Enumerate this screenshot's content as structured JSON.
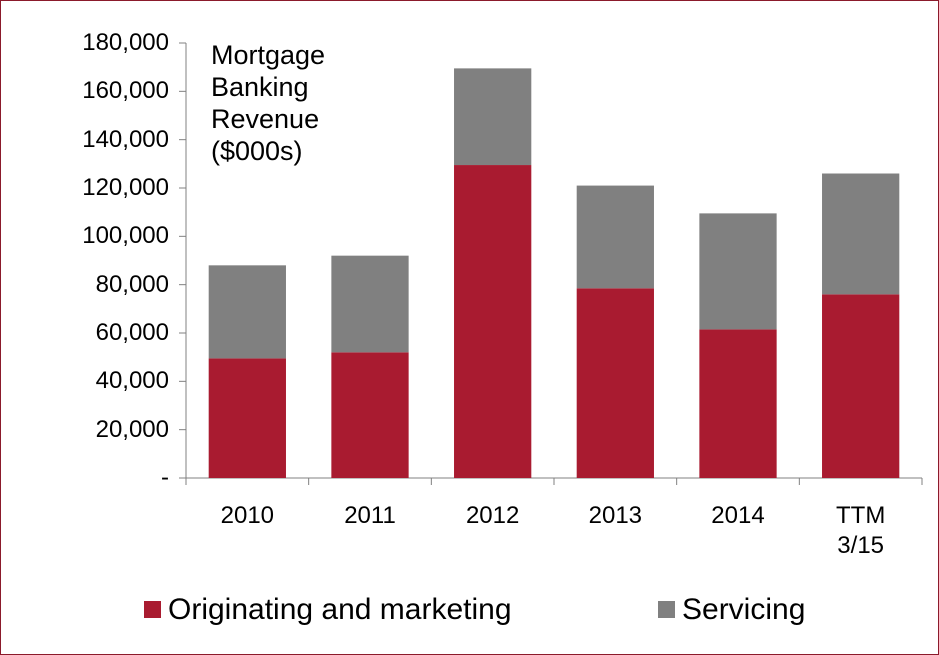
{
  "chart_data": {
    "type": "bar",
    "stacked": true,
    "title": "Mortgage Banking Revenue ($000s)",
    "categories": [
      "2010",
      "2011",
      "2012",
      "2013",
      "2014",
      "TTM 3/15"
    ],
    "series": [
      {
        "name": "Originating and marketing",
        "color": "#a91b30",
        "values": [
          49500,
          52000,
          129500,
          78500,
          61500,
          76000
        ]
      },
      {
        "name": "Servicing",
        "color": "#808080",
        "values": [
          38500,
          40000,
          40000,
          42500,
          48000,
          50000
        ]
      }
    ],
    "ylim": [
      0,
      180000
    ],
    "yticks": [
      {
        "value": 0,
        "label": "-"
      },
      {
        "value": 20000,
        "label": "20,000"
      },
      {
        "value": 40000,
        "label": "40,000"
      },
      {
        "value": 60000,
        "label": "60,000"
      },
      {
        "value": 80000,
        "label": "80,000"
      },
      {
        "value": 100000,
        "label": "100,000"
      },
      {
        "value": 120000,
        "label": "120,000"
      },
      {
        "value": 140000,
        "label": "140,000"
      },
      {
        "value": 160000,
        "label": "160,000"
      },
      {
        "value": 180000,
        "label": "180,000"
      }
    ],
    "grid": false,
    "legend": "bottom"
  }
}
